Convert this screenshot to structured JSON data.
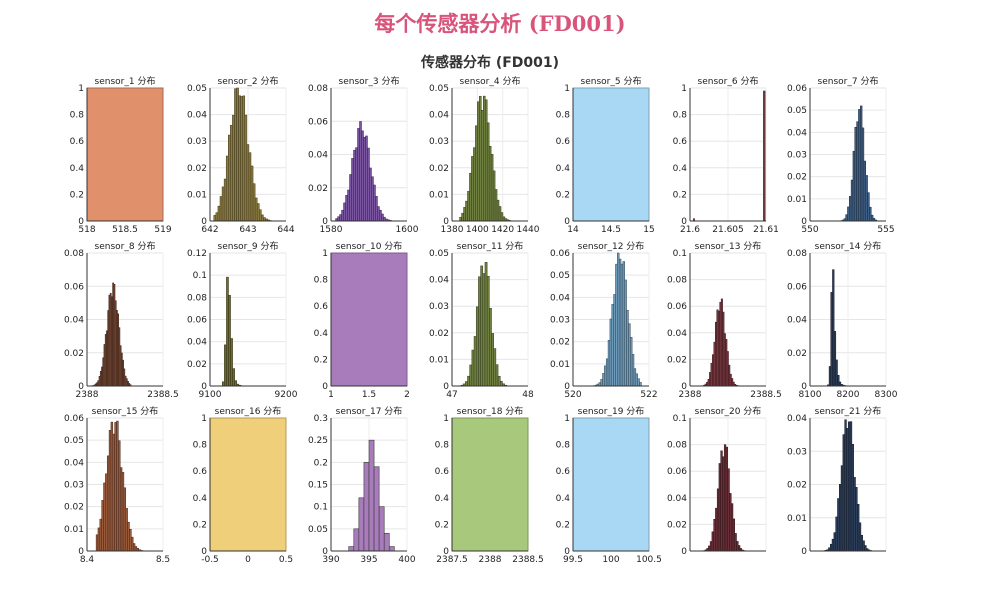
{
  "page_title": "每个传感器分析 (FD001)",
  "figure_title": "传感器分布 (FD001)",
  "chart_data": [
    {
      "type": "bar",
      "title": "sensor_1 分布",
      "color": "#e0906a",
      "constant": true,
      "xlim": [
        518,
        519
      ],
      "xticks": [
        "518",
        "518.5",
        "519"
      ],
      "ylim": [
        0,
        1
      ],
      "yticks": [
        "0",
        "0.2",
        "0.4",
        "0.6",
        "0.8",
        "1"
      ],
      "values": [
        1
      ]
    },
    {
      "type": "bar",
      "title": "sensor_2 分布",
      "color": "#8a7a40",
      "xlim": [
        641.5,
        644.5
      ],
      "xticks": [
        "642",
        "643",
        "644"
      ],
      "ylim": [
        0,
        0.05
      ],
      "yticks": [
        "0",
        "0.01",
        "0.02",
        "0.03",
        "0.04",
        "0.05"
      ],
      "dist": {
        "peak": 0.049,
        "skew": 0.38,
        "width": 0.25,
        "start": 0.05,
        "end": 0.92
      }
    },
    {
      "type": "bar",
      "title": "sensor_3 分布",
      "color": "#7a55a0",
      "xlim": [
        1570,
        1620
      ],
      "xticks": [
        "1580",
        "1600"
      ],
      "ylim": [
        0,
        0.08
      ],
      "yticks": [
        "0",
        "0.02",
        "0.04",
        "0.06",
        "0.08"
      ],
      "dist": {
        "peak": 0.055,
        "skew": 0.4,
        "width": 0.24,
        "start": 0.06,
        "end": 0.9
      }
    },
    {
      "type": "bar",
      "title": "sensor_4 分布",
      "color": "#6f8040",
      "xlim": [
        1380,
        1440
      ],
      "xticks": [
        "1380",
        "1400",
        "1420",
        "1440"
      ],
      "ylim": [
        0,
        0.05
      ],
      "yticks": [
        "0",
        "0.01",
        "0.02",
        "0.03",
        "0.04",
        "0.05"
      ],
      "dist": {
        "peak": 0.046,
        "skew": 0.4,
        "width": 0.22,
        "start": 0.1,
        "end": 0.93
      }
    },
    {
      "type": "bar",
      "title": "sensor_5 分布",
      "color": "#a8d8f3",
      "constant": true,
      "xlim": [
        14,
        15
      ],
      "xticks": [
        "14",
        "14.5",
        "15"
      ],
      "ylim": [
        0,
        1
      ],
      "yticks": [
        "0",
        "0.2",
        "0.4",
        "0.6",
        "0.8",
        "1"
      ],
      "values": [
        1
      ]
    },
    {
      "type": "bar",
      "title": "sensor_6 分布",
      "color": "#6a3a3a",
      "spike": true,
      "xlim": [
        21.6,
        21.61
      ],
      "xticks": [
        "21.6",
        "21.605",
        "21.61"
      ],
      "ylim": [
        0,
        1
      ],
      "yticks": [
        "0",
        "0.2",
        "0.4",
        "0.6",
        "0.8",
        "1"
      ],
      "values": [
        0.02,
        0.98
      ]
    },
    {
      "type": "bar",
      "title": "sensor_7 分布",
      "color": "#3e5f85",
      "xlim": [
        550,
        556
      ],
      "xticks": [
        "550",
        "555"
      ],
      "ylim": [
        0,
        0.06
      ],
      "yticks": [
        "0",
        "0.01",
        "0.02",
        "0.03",
        "0.04",
        "0.05",
        "0.06"
      ],
      "dist": {
        "peak": 0.05,
        "skew": 0.65,
        "width": 0.14,
        "start": 0.18,
        "end": 0.95
      }
    },
    {
      "type": "bar",
      "title": "sensor_8 分布",
      "color": "#7a4a35",
      "xlim": [
        2387.9,
        2388.5
      ],
      "xticks": [
        "2388",
        "2388.5"
      ],
      "ylim": [
        0,
        0.08
      ],
      "yticks": [
        "0",
        "0.02",
        "0.04",
        "0.06",
        "0.08"
      ],
      "dist": {
        "peak": 0.058,
        "skew": 0.34,
        "width": 0.16,
        "start": 0.06,
        "end": 0.58
      }
    },
    {
      "type": "bar",
      "title": "sensor_9 分布",
      "color": "#6e6a33",
      "xlim": [
        9000,
        9260
      ],
      "xticks": [
        "9100",
        "9200"
      ],
      "ylim": [
        0,
        0.12
      ],
      "yticks": [
        "0",
        "0.02",
        "0.04",
        "0.06",
        "0.08",
        "0.1",
        "0.12"
      ],
      "dist": {
        "peak": 0.105,
        "skew": 0.24,
        "width": 0.05,
        "start": 0.08,
        "end": 0.95,
        "tail": 0.3
      }
    },
    {
      "type": "bar",
      "title": "sensor_10 分布",
      "color": "#a87cbb",
      "constant": true,
      "xlim": [
        1,
        2
      ],
      "xticks": [
        "1",
        "1.5",
        "2"
      ],
      "ylim": [
        0,
        1
      ],
      "yticks": [
        "0",
        "0.2",
        "0.4",
        "0.6",
        "0.8",
        "1"
      ],
      "values": [
        1
      ]
    },
    {
      "type": "bar",
      "title": "sensor_11 分布",
      "color": "#6f8040",
      "xlim": [
        46.8,
        48.6
      ],
      "xticks": [
        "47",
        "48"
      ],
      "ylim": [
        0,
        0.05
      ],
      "yticks": [
        "0",
        "0.01",
        "0.02",
        "0.03",
        "0.04",
        "0.05"
      ],
      "dist": {
        "peak": 0.046,
        "skew": 0.42,
        "width": 0.18,
        "start": 0.06,
        "end": 0.98
      }
    },
    {
      "type": "bar",
      "title": "sensor_12 分布",
      "color": "#6f9cbb",
      "xlim": [
        518.5,
        524
      ],
      "xticks": [
        "520",
        "522"
      ],
      "ylim": [
        0,
        0.06
      ],
      "yticks": [
        "0",
        "0.01",
        "0.02",
        "0.03",
        "0.04",
        "0.05",
        "0.06"
      ],
      "dist": {
        "peak": 0.058,
        "skew": 0.62,
        "width": 0.2,
        "start": 0.12,
        "end": 0.9
      }
    },
    {
      "type": "bar",
      "title": "sensor_13 分布",
      "color": "#7a3840",
      "xlim": [
        2387.9,
        2388.5
      ],
      "xticks": [
        "2388",
        "2388.5"
      ],
      "ylim": [
        0,
        0.1
      ],
      "yticks": [
        "0",
        "0.02",
        "0.04",
        "0.06",
        "0.08",
        "0.1"
      ],
      "dist": {
        "peak": 0.062,
        "skew": 0.4,
        "width": 0.14,
        "start": 0.1,
        "end": 0.72
      }
    },
    {
      "type": "bar",
      "title": "sensor_14 分布",
      "color": "#2c3e5a",
      "xlim": [
        8100,
        8300
      ],
      "xticks": [
        "8100",
        "8200",
        "8300"
      ],
      "ylim": [
        0,
        0.08
      ],
      "yticks": [
        "0",
        "0.02",
        "0.04",
        "0.06",
        "0.08"
      ],
      "dist": {
        "peak": 0.07,
        "skew": 0.3,
        "width": 0.04,
        "start": 0.14,
        "end": 0.85,
        "tail": 0.35
      }
    },
    {
      "type": "bar",
      "title": "sensor_15 分布",
      "color": "#9a5a3c",
      "xlim": [
        8.32,
        8.56
      ],
      "xticks": [
        "8.4",
        "8.5"
      ],
      "ylim": [
        0,
        0.06
      ],
      "yticks": [
        "0",
        "0.01",
        "0.02",
        "0.03",
        "0.04",
        "0.05",
        "0.06"
      ],
      "dist": {
        "peak": 0.057,
        "skew": 0.36,
        "width": 0.22,
        "start": 0.12,
        "end": 0.9
      }
    },
    {
      "type": "bar",
      "title": "sensor_16 分布",
      "color": "#f0cf7a",
      "constant": true,
      "xlim": [
        -0.5,
        0.5
      ],
      "xticks": [
        "-0.5",
        "0",
        "0.5"
      ],
      "ylim": [
        0,
        1
      ],
      "yticks": [
        "0",
        "0.2",
        "0.4",
        "0.6",
        "0.8",
        "1"
      ],
      "values": [
        1
      ]
    },
    {
      "type": "bar",
      "title": "sensor_17 分布",
      "color": "#a87cbb",
      "discrete": true,
      "xlim": [
        386,
        401
      ],
      "xticks": [
        "390",
        "395",
        "400"
      ],
      "ylim": [
        0,
        0.3
      ],
      "yticks": [
        "0",
        "0.05",
        "0.1",
        "0.15",
        "0.2",
        "0.25",
        "0.3"
      ],
      "bins": [
        389.5,
        390.5,
        391.5,
        392.5,
        393.5,
        394.5,
        395.5,
        396.5,
        397.5
      ],
      "values": [
        0.01,
        0.05,
        0.12,
        0.2,
        0.25,
        0.19,
        0.1,
        0.04,
        0.01
      ]
    },
    {
      "type": "bar",
      "title": "sensor_18 分布",
      "color": "#a8c87c",
      "constant": true,
      "xlim": [
        2387.5,
        2388.5
      ],
      "xticks": [
        "2387.5",
        "2388",
        "2388.5"
      ],
      "ylim": [
        0,
        1
      ],
      "yticks": [
        "0",
        "0.2",
        "0.4",
        "0.6",
        "0.8",
        "1"
      ],
      "values": [
        1
      ]
    },
    {
      "type": "bar",
      "title": "sensor_19 分布",
      "color": "#a8d8f3",
      "constant": true,
      "xlim": [
        99.5,
        100.5
      ],
      "xticks": [
        "99.5",
        "100",
        "100.5"
      ],
      "ylim": [
        0,
        1
      ],
      "yticks": [
        "0",
        "0.2",
        "0.4",
        "0.6",
        "0.8",
        "1"
      ],
      "values": [
        1
      ]
    },
    {
      "type": "bar",
      "title": "sensor_20 分布",
      "color": "#6a2f38",
      "xlim": [
        37.8,
        39.8
      ],
      "xticks": [
        "",
        "",
        ""
      ],
      "ylim": [
        0,
        0.1
      ],
      "yticks": [
        "0",
        "0.02",
        "0.04",
        "0.06",
        "0.08",
        "0.1"
      ],
      "dist": {
        "peak": 0.078,
        "skew": 0.45,
        "width": 0.16,
        "start": 0.08,
        "end": 0.82
      }
    },
    {
      "type": "bar",
      "title": "sensor_21 分布",
      "color": "#2c3e5a",
      "xlim": [
        22.6,
        23.7
      ],
      "xticks": [
        "",
        "",
        ""
      ],
      "ylim": [
        0,
        0.04
      ],
      "yticks": [
        "0",
        "0.01",
        "0.02",
        "0.03",
        "0.04"
      ],
      "dist": {
        "peak": 0.039,
        "skew": 0.5,
        "width": 0.18,
        "start": 0.1,
        "end": 0.86
      }
    }
  ]
}
